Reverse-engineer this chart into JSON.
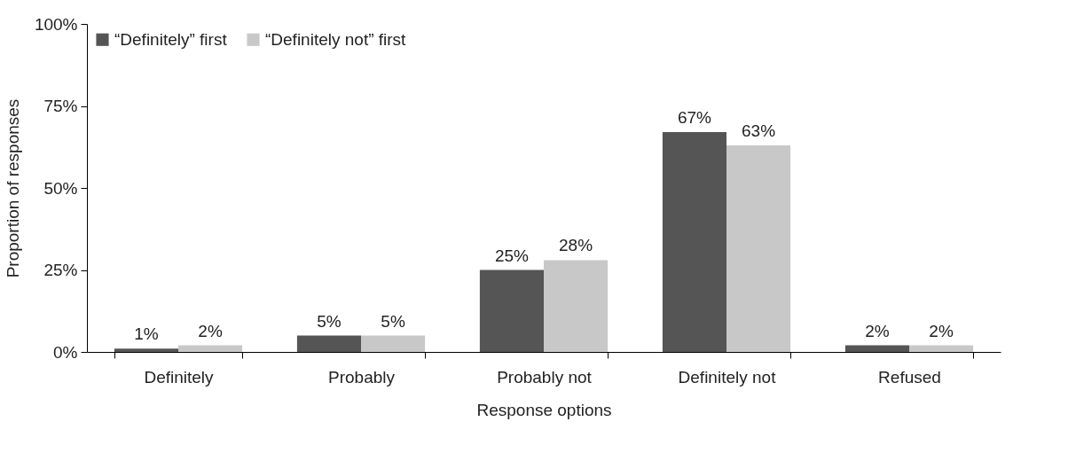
{
  "chart_data": {
    "type": "bar",
    "xlabel": "Response options",
    "ylabel": "Proportion of responses",
    "categories": [
      "Definitely",
      "Probably",
      "Probably not",
      "Definitely not",
      "Refused"
    ],
    "series": [
      {
        "name": "“Definitely” first",
        "color": "#555555",
        "values": [
          1,
          5,
          25,
          67,
          2
        ],
        "value_labels": [
          "1%",
          "5%",
          "25%",
          "67%",
          "2%"
        ]
      },
      {
        "name": "“Definitely not” first",
        "color": "#c8c8c8",
        "values": [
          2,
          5,
          28,
          63,
          2
        ],
        "value_labels": [
          "2%",
          "5%",
          "28%",
          "63%",
          "2%"
        ]
      }
    ],
    "ylim": [
      0,
      100
    ],
    "yticks": [
      {
        "value": 0,
        "label": "0%"
      },
      {
        "value": 25,
        "label": "25%"
      },
      {
        "value": 50,
        "label": "50%"
      },
      {
        "value": 75,
        "label": "75%"
      },
      {
        "value": 100,
        "label": "100%"
      }
    ],
    "grid": false,
    "legend": "top left"
  }
}
